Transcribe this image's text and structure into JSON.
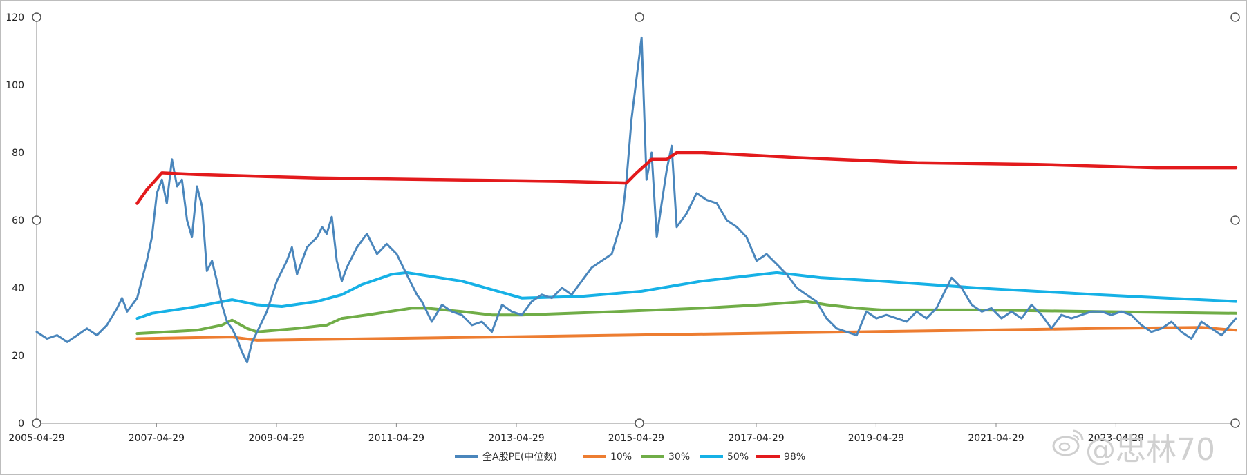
{
  "chart_data": {
    "type": "line",
    "title": "",
    "xlabel": "",
    "ylabel": "",
    "ylim": [
      0,
      120
    ],
    "yticks": [
      0,
      20,
      40,
      60,
      80,
      100,
      120
    ],
    "xlim": [
      "2005-04-29",
      "2025-04-29"
    ],
    "xticks": [
      "2005-04-29",
      "2007-04-29",
      "2009-04-29",
      "2011-04-29",
      "2013-04-29",
      "2015-04-29",
      "2017-04-29",
      "2019-04-29",
      "2021-04-29",
      "2023-04-29"
    ],
    "grid": false,
    "legend_position": "bottom",
    "series": [
      {
        "name": "全A股PE(中位数)",
        "color": "#4a86bc",
        "points": [
          [
            "2005-04-29",
            27
          ],
          [
            "2005-07-01",
            25
          ],
          [
            "2005-09-01",
            26
          ],
          [
            "2005-11-01",
            24
          ],
          [
            "2006-01-01",
            26
          ],
          [
            "2006-03-01",
            28
          ],
          [
            "2006-05-01",
            26
          ],
          [
            "2006-07-01",
            29
          ],
          [
            "2006-09-01",
            34
          ],
          [
            "2006-10-01",
            37
          ],
          [
            "2006-11-01",
            33
          ],
          [
            "2007-01-01",
            37
          ],
          [
            "2007-03-01",
            48
          ],
          [
            "2007-04-01",
            55
          ],
          [
            "2007-05-01",
            68
          ],
          [
            "2007-06-01",
            72
          ],
          [
            "2007-07-01",
            65
          ],
          [
            "2007-08-01",
            78
          ],
          [
            "2007-09-01",
            70
          ],
          [
            "2007-10-01",
            72
          ],
          [
            "2007-11-01",
            60
          ],
          [
            "2007-12-01",
            55
          ],
          [
            "2008-01-01",
            70
          ],
          [
            "2008-02-01",
            64
          ],
          [
            "2008-03-01",
            45
          ],
          [
            "2008-04-01",
            48
          ],
          [
            "2008-05-01",
            42
          ],
          [
            "2008-06-01",
            35
          ],
          [
            "2008-07-01",
            30
          ],
          [
            "2008-08-01",
            28
          ],
          [
            "2008-09-01",
            25
          ],
          [
            "2008-10-01",
            21
          ],
          [
            "2008-11-01",
            18
          ],
          [
            "2008-12-01",
            24
          ],
          [
            "2009-01-01",
            27
          ],
          [
            "2009-03-01",
            33
          ],
          [
            "2009-05-01",
            42
          ],
          [
            "2009-07-01",
            48
          ],
          [
            "2009-08-01",
            52
          ],
          [
            "2009-09-01",
            44
          ],
          [
            "2009-11-01",
            52
          ],
          [
            "2010-01-01",
            55
          ],
          [
            "2010-02-01",
            58
          ],
          [
            "2010-03-01",
            56
          ],
          [
            "2010-04-01",
            61
          ],
          [
            "2010-05-01",
            48
          ],
          [
            "2010-06-01",
            42
          ],
          [
            "2010-07-01",
            46
          ],
          [
            "2010-09-01",
            52
          ],
          [
            "2010-11-01",
            56
          ],
          [
            "2011-01-01",
            50
          ],
          [
            "2011-03-01",
            53
          ],
          [
            "2011-05-01",
            50
          ],
          [
            "2011-07-01",
            44
          ],
          [
            "2011-09-01",
            38
          ],
          [
            "2011-10-01",
            36
          ],
          [
            "2011-12-01",
            30
          ],
          [
            "2012-02-01",
            35
          ],
          [
            "2012-04-01",
            33
          ],
          [
            "2012-06-01",
            32
          ],
          [
            "2012-08-01",
            29
          ],
          [
            "2012-10-01",
            30
          ],
          [
            "2012-12-01",
            27
          ],
          [
            "2013-02-01",
            35
          ],
          [
            "2013-04-01",
            33
          ],
          [
            "2013-06-01",
            32
          ],
          [
            "2013-08-01",
            36
          ],
          [
            "2013-10-01",
            38
          ],
          [
            "2013-12-01",
            37
          ],
          [
            "2014-02-01",
            40
          ],
          [
            "2014-04-01",
            38
          ],
          [
            "2014-06-01",
            42
          ],
          [
            "2014-08-01",
            46
          ],
          [
            "2014-10-01",
            48
          ],
          [
            "2014-12-01",
            50
          ],
          [
            "2015-02-01",
            60
          ],
          [
            "2015-03-01",
            72
          ],
          [
            "2015-04-01",
            90
          ],
          [
            "2015-05-01",
            102
          ],
          [
            "2015-06-01",
            114
          ],
          [
            "2015-07-01",
            72
          ],
          [
            "2015-08-01",
            80
          ],
          [
            "2015-09-01",
            55
          ],
          [
            "2015-10-01",
            65
          ],
          [
            "2015-11-01",
            75
          ],
          [
            "2015-12-01",
            82
          ],
          [
            "2016-01-01",
            58
          ],
          [
            "2016-03-01",
            62
          ],
          [
            "2016-05-01",
            68
          ],
          [
            "2016-07-01",
            66
          ],
          [
            "2016-09-01",
            65
          ],
          [
            "2016-11-01",
            60
          ],
          [
            "2017-01-01",
            58
          ],
          [
            "2017-03-01",
            55
          ],
          [
            "2017-05-01",
            48
          ],
          [
            "2017-07-01",
            50
          ],
          [
            "2017-09-01",
            47
          ],
          [
            "2017-11-01",
            44
          ],
          [
            "2018-01-01",
            40
          ],
          [
            "2018-03-01",
            38
          ],
          [
            "2018-05-01",
            36
          ],
          [
            "2018-07-01",
            31
          ],
          [
            "2018-09-01",
            28
          ],
          [
            "2018-11-01",
            27
          ],
          [
            "2019-01-01",
            26
          ],
          [
            "2019-03-01",
            33
          ],
          [
            "2019-05-01",
            31
          ],
          [
            "2019-07-01",
            32
          ],
          [
            "2019-09-01",
            31
          ],
          [
            "2019-11-01",
            30
          ],
          [
            "2020-01-01",
            33
          ],
          [
            "2020-03-01",
            31
          ],
          [
            "2020-05-01",
            34
          ],
          [
            "2020-07-01",
            40
          ],
          [
            "2020-08-01",
            43
          ],
          [
            "2020-10-01",
            40
          ],
          [
            "2020-12-01",
            35
          ],
          [
            "2021-02-01",
            33
          ],
          [
            "2021-04-01",
            34
          ],
          [
            "2021-06-01",
            31
          ],
          [
            "2021-08-01",
            33
          ],
          [
            "2021-10-01",
            31
          ],
          [
            "2021-12-01",
            35
          ],
          [
            "2022-02-01",
            32
          ],
          [
            "2022-04-01",
            28
          ],
          [
            "2022-06-01",
            32
          ],
          [
            "2022-08-01",
            31
          ],
          [
            "2022-10-01",
            32
          ],
          [
            "2022-12-01",
            33
          ],
          [
            "2023-02-01",
            33
          ],
          [
            "2023-04-01",
            32
          ],
          [
            "2023-06-01",
            33
          ],
          [
            "2023-08-01",
            32
          ],
          [
            "2023-10-01",
            29
          ],
          [
            "2023-12-01",
            27
          ],
          [
            "2024-02-01",
            28
          ],
          [
            "2024-04-01",
            30
          ],
          [
            "2024-06-01",
            27
          ],
          [
            "2024-08-01",
            25
          ],
          [
            "2024-10-01",
            30
          ],
          [
            "2024-12-01",
            28
          ],
          [
            "2025-02-01",
            26
          ],
          [
            "2025-04-29",
            31
          ]
        ]
      },
      {
        "name": "10%",
        "color": "#ed7d31",
        "points": [
          [
            "2007-01-01",
            25
          ],
          [
            "2008-08-01",
            25.5
          ],
          [
            "2009-01-01",
            24.5
          ],
          [
            "2011-01-01",
            25
          ],
          [
            "2013-01-01",
            25.5
          ],
          [
            "2015-01-01",
            26
          ],
          [
            "2017-01-01",
            26.5
          ],
          [
            "2019-01-01",
            27
          ],
          [
            "2021-01-01",
            27.5
          ],
          [
            "2023-01-01",
            28
          ],
          [
            "2024-10-01",
            28.3
          ],
          [
            "2025-04-29",
            27.5
          ]
        ]
      },
      {
        "name": "30%",
        "color": "#70ad47",
        "points": [
          [
            "2007-01-01",
            26.5
          ],
          [
            "2008-01-01",
            27.5
          ],
          [
            "2008-06-01",
            29
          ],
          [
            "2008-08-01",
            30.5
          ],
          [
            "2008-11-01",
            28
          ],
          [
            "2009-01-01",
            27
          ],
          [
            "2009-09-01",
            28
          ],
          [
            "2010-03-01",
            29
          ],
          [
            "2010-06-01",
            31
          ],
          [
            "2010-11-01",
            32
          ],
          [
            "2011-08-01",
            34
          ],
          [
            "2011-11-01",
            34
          ],
          [
            "2012-06-01",
            33
          ],
          [
            "2012-12-01",
            32
          ],
          [
            "2013-06-01",
            32
          ],
          [
            "2015-01-01",
            33
          ],
          [
            "2016-06-01",
            34
          ],
          [
            "2017-06-01",
            35
          ],
          [
            "2018-03-01",
            36
          ],
          [
            "2018-07-01",
            35
          ],
          [
            "2019-01-01",
            34
          ],
          [
            "2019-06-01",
            33.5
          ],
          [
            "2021-01-01",
            33.5
          ],
          [
            "2023-01-01",
            33
          ],
          [
            "2025-04-29",
            32.5
          ]
        ]
      },
      {
        "name": "50%",
        "color": "#16b1e6",
        "points": [
          [
            "2007-01-01",
            31
          ],
          [
            "2007-04-01",
            32.5
          ],
          [
            "2008-01-01",
            34.5
          ],
          [
            "2008-08-01",
            36.5
          ],
          [
            "2009-01-01",
            35
          ],
          [
            "2009-06-01",
            34.5
          ],
          [
            "2010-01-01",
            36
          ],
          [
            "2010-06-01",
            38
          ],
          [
            "2010-10-01",
            41
          ],
          [
            "2011-04-01",
            44
          ],
          [
            "2011-07-01",
            44.5
          ],
          [
            "2012-06-01",
            42
          ],
          [
            "2012-12-01",
            39.5
          ],
          [
            "2013-06-01",
            37
          ],
          [
            "2014-06-01",
            37.5
          ],
          [
            "2015-06-01",
            39
          ],
          [
            "2016-06-01",
            42
          ],
          [
            "2017-09-01",
            44.5
          ],
          [
            "2018-06-01",
            43
          ],
          [
            "2019-06-01",
            42
          ],
          [
            "2021-01-01",
            40
          ],
          [
            "2023-01-01",
            38
          ],
          [
            "2025-04-29",
            36
          ]
        ]
      },
      {
        "name": "98%",
        "color": "#e31a1c",
        "points": [
          [
            "2007-01-01",
            65
          ],
          [
            "2007-03-01",
            69
          ],
          [
            "2007-06-01",
            74
          ],
          [
            "2008-01-01",
            73.5
          ],
          [
            "2010-01-01",
            72.5
          ],
          [
            "2012-01-01",
            72
          ],
          [
            "2014-01-01",
            71.5
          ],
          [
            "2015-03-01",
            71
          ],
          [
            "2015-05-01",
            74
          ],
          [
            "2015-08-01",
            78
          ],
          [
            "2015-11-01",
            78
          ],
          [
            "2016-01-01",
            80
          ],
          [
            "2016-06-01",
            80
          ],
          [
            "2018-01-01",
            78.5
          ],
          [
            "2020-01-01",
            77
          ],
          [
            "2022-01-01",
            76.5
          ],
          [
            "2024-01-01",
            75.5
          ],
          [
            "2025-04-29",
            75.5
          ]
        ]
      }
    ]
  },
  "watermark": {
    "icon": "weibo-icon",
    "text": "@忠林70"
  }
}
